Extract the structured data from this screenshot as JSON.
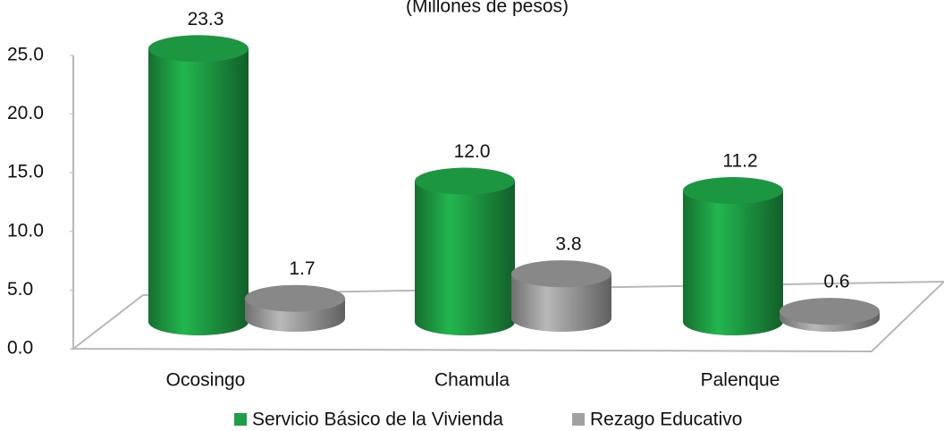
{
  "chart_data": {
    "type": "cylinder_bar",
    "subtitle": "(Millones de pesos)",
    "categories": [
      "Ocosingo",
      "Chamula",
      "Palenque"
    ],
    "series": [
      {
        "name": "Servicio Básico de la Vivienda",
        "color": "#1e9e45",
        "values": [
          23.3,
          12.0,
          11.2
        ],
        "value_labels": [
          "23.3",
          "12.0",
          "11.2"
        ]
      },
      {
        "name": "Rezago Educativo",
        "color": "#a0a0a0",
        "values": [
          1.7,
          3.8,
          0.6
        ],
        "value_labels": [
          "1.7",
          "3.8",
          "0.6"
        ]
      }
    ],
    "ylim": [
      0,
      25
    ],
    "yticks": [
      {
        "value": 0,
        "label": "0.0"
      },
      {
        "value": 5,
        "label": "5.0"
      },
      {
        "value": 10,
        "label": "10.0"
      },
      {
        "value": 15,
        "label": "15.0"
      },
      {
        "value": 20,
        "label": "20.0"
      },
      {
        "value": 25,
        "label": "25.0"
      }
    ],
    "legend": "bottom"
  }
}
